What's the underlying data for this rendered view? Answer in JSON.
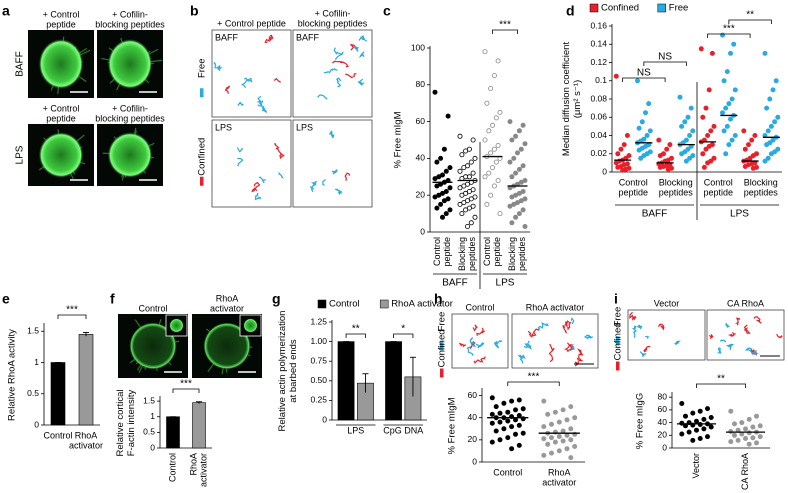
{
  "chart_data": [
    {
      "type": "micrograph",
      "panel_label": "a",
      "rows": [
        {
          "label": "BAFF",
          "column_labels": [
            [
              "+ Control",
              "peptide"
            ],
            [
              "+ Cofilin-",
              "blocking peptides"
            ]
          ]
        },
        {
          "label": "LPS",
          "column_labels": [
            [
              "+ Control",
              "peptide"
            ],
            [
              "+ Cofilin-",
              "blocking peptides"
            ]
          ]
        }
      ]
    },
    {
      "type": "tracks",
      "panel_label": "b",
      "rows": [
        {
          "column_labels": [
            [
              "+ Control peptide"
            ],
            [
              "+ Cofilin-",
              "blocking peptides"
            ]
          ],
          "insets": [
            "BAFF",
            "BAFF"
          ]
        },
        {
          "insets": [
            "LPS",
            "LPS"
          ]
        }
      ],
      "side_labels": [
        "Free",
        "Confined"
      ],
      "side_colors": [
        "#29abe2",
        "#e8202a"
      ]
    },
    {
      "type": "strip",
      "panel_label": "c",
      "ylabel": "% Free mIgM",
      "ylim": [
        0,
        100
      ],
      "yticks": [
        0,
        20,
        40,
        60,
        80,
        100
      ],
      "categories": [
        [
          "Control",
          "peptide"
        ],
        [
          "Blocking",
          "peptides"
        ],
        [
          "Control",
          "peptide"
        ],
        [
          "Blocking",
          "peptides"
        ]
      ],
      "groups": [
        "BAFF",
        "LPS"
      ],
      "series": [
        {
          "color": "#000000",
          "colors": [
            "#000000",
            "#000000",
            "#888888",
            "#888888"
          ],
          "filled": [
            true,
            false,
            false,
            true
          ],
          "values": [
            [
              76,
              63,
              45,
              40,
              38,
              35,
              33,
              31,
              30,
              29,
              28,
              27,
              26,
              25,
              24,
              22,
              21,
              20,
              19,
              18,
              17,
              15,
              13,
              12,
              10,
              8
            ],
            [
              52,
              50,
              45,
              44,
              42,
              40,
              38,
              36,
              35,
              33,
              32,
              30,
              30,
              29,
              28,
              27,
              26,
              25,
              24,
              23,
              22,
              21,
              20,
              19,
              18,
              17,
              16,
              15,
              14,
              13,
              12,
              10,
              8,
              5,
              3
            ],
            [
              98,
              93,
              85,
              78,
              70,
              65,
              62,
              58,
              55,
              50,
              47,
              45,
              43,
              41,
              40,
              38,
              35,
              32,
              30,
              28,
              25,
              20,
              15,
              10
            ],
            [
              60,
              58,
              55,
              52,
              50,
              48,
              45,
              43,
              40,
              38,
              36,
              34,
              32,
              30,
              28,
              27,
              26,
              25,
              24,
              22,
              21,
              20,
              19,
              18,
              17,
              16,
              15,
              14,
              12,
              10,
              8,
              5,
              3
            ]
          ],
          "medians": [
            27,
            28,
            41,
            25
          ]
        }
      ],
      "annotations": [
        "***"
      ]
    },
    {
      "type": "strip",
      "panel_label": "d",
      "ylabel": [
        "Median diffusion coefficient",
        "(μm² s⁻¹)"
      ],
      "ylim": [
        0,
        0.16
      ],
      "yticks": [
        0,
        0.02,
        0.04,
        0.06,
        0.08,
        0.1,
        0.12,
        0.14,
        0.16
      ],
      "categories": [
        [
          "Control",
          "peptide"
        ],
        [
          "Blocking",
          "peptides"
        ],
        [
          "Control",
          "peptide"
        ],
        [
          "Blocking",
          "peptides"
        ]
      ],
      "groups": [
        "BAFF",
        "LPS"
      ],
      "series": [
        {
          "name": "Confined",
          "color": "#e8202a",
          "values": [
            [
              0.105,
              0.04,
              0.03,
              0.025,
              0.02,
              0.018,
              0.015,
              0.013,
              0.012,
              0.01,
              0.009,
              0.008,
              0.006,
              0.005,
              0.004,
              0.003,
              0.002
            ],
            [
              0.035,
              0.03,
              0.025,
              0.02,
              0.018,
              0.015,
              0.013,
              0.012,
              0.01,
              0.009,
              0.008,
              0.007,
              0.006,
              0.005,
              0.004,
              0.003
            ],
            [
              0.135,
              0.13,
              0.09,
              0.07,
              0.06,
              0.05,
              0.045,
              0.04,
              0.035,
              0.033,
              0.03,
              0.028,
              0.025,
              0.02,
              0.015,
              0.012,
              0.01,
              0.005
            ],
            [
              0.045,
              0.04,
              0.035,
              0.03,
              0.025,
              0.02,
              0.018,
              0.015,
              0.013,
              0.012,
              0.01,
              0.009,
              0.008,
              0.006,
              0.005,
              0.004
            ]
          ],
          "medians": [
            0.013,
            0.01,
            0.033,
            0.012
          ]
        },
        {
          "name": "Free",
          "color": "#29abe2",
          "values": [
            [
              0.1,
              0.075,
              0.065,
              0.055,
              0.048,
              0.045,
              0.04,
              0.036,
              0.034,
              0.032,
              0.03,
              0.028,
              0.026,
              0.024,
              0.022,
              0.02,
              0.018,
              0.015
            ],
            [
              0.082,
              0.07,
              0.06,
              0.055,
              0.05,
              0.045,
              0.04,
              0.035,
              0.032,
              0.03,
              0.028,
              0.025,
              0.022,
              0.02,
              0.018,
              0.015,
              0.012
            ],
            [
              0.15,
              0.14,
              0.13,
              0.11,
              0.1,
              0.09,
              0.08,
              0.075,
              0.07,
              0.065,
              0.062,
              0.058,
              0.05,
              0.045,
              0.04,
              0.035,
              0.03,
              0.02
            ],
            [
              0.13,
              0.1,
              0.09,
              0.08,
              0.07,
              0.06,
              0.055,
              0.05,
              0.045,
              0.04,
              0.038,
              0.035,
              0.032,
              0.03,
              0.025,
              0.022,
              0.02,
              0.015,
              0.012
            ]
          ],
          "medians": [
            0.032,
            0.03,
            0.062,
            0.038
          ]
        }
      ],
      "annotations": [
        "NS",
        "NS",
        "***",
        "**"
      ]
    },
    {
      "type": "bar",
      "panel_label": "e",
      "ylabel": "Relative RhoA activity",
      "ylim": [
        0,
        1.6
      ],
      "yticks": [
        0,
        0.5,
        1,
        1.5
      ],
      "categories": [
        [
          "Control"
        ],
        [
          "RhoA",
          "activator"
        ]
      ],
      "values": [
        1,
        1.45
      ],
      "errors": [
        0,
        0.03
      ],
      "colors": [
        "#000000",
        "#999999"
      ],
      "annotations": [
        "***"
      ]
    },
    {
      "type": "micrograph",
      "panel_label": "f",
      "rows": [
        {
          "column_labels": [
            [
              "Control"
            ],
            [
              "RhoA",
              "activator"
            ]
          ]
        }
      ]
    },
    {
      "type": "bar",
      "ylabel": [
        "Relative cortical",
        "F-actin intensity"
      ],
      "ylim": [
        0,
        1.6
      ],
      "yticks": [
        0,
        0.5,
        1,
        1.5
      ],
      "categories": [
        [
          "Control"
        ],
        [
          "RhoA",
          "activator"
        ]
      ],
      "values": [
        1,
        1.45
      ],
      "errors": [
        0,
        0.03
      ],
      "colors": [
        "#000000",
        "#999999"
      ],
      "annotations": [
        "***"
      ]
    },
    {
      "type": "bar",
      "panel_label": "g",
      "ylabel": [
        "Relative actin polymerization",
        "at barbed ends"
      ],
      "ylim": [
        0,
        1.25
      ],
      "yticks": [
        0,
        0.25,
        {
          "value": 0.5,
          "label": "0.50"
        },
        0.75,
        {
          "value": 1,
          "label": "1.00"
        },
        1.25
      ],
      "categories": [
        [
          "LPS"
        ],
        [
          "CpG DNA"
        ]
      ],
      "series": [
        {
          "name": "Control",
          "color": "#000000",
          "values": [
            1,
            1
          ],
          "errors": [
            0,
            0
          ]
        },
        {
          "name": "RhoA activator",
          "color": "#999999",
          "values": [
            0.47,
            0.55
          ],
          "errors": [
            0.12,
            0.25
          ]
        }
      ],
      "annotations": [
        "**",
        "*"
      ]
    },
    {
      "type": "tracks",
      "panel_label": "h",
      "rows": [
        {
          "column_labels": [
            [
              "Control"
            ],
            [
              "RhoA activator"
            ]
          ]
        }
      ],
      "side_labels": [
        "Free",
        "Confined"
      ],
      "side_colors": [
        "#29abe2",
        "#e8202a"
      ]
    },
    {
      "type": "strip",
      "ylabel": "% Free mIgM",
      "ylim": [
        0,
        65
      ],
      "yticks": [
        0,
        20,
        40,
        60
      ],
      "categories": [
        [
          "Control"
        ],
        [
          "RhoA",
          "activator"
        ]
      ],
      "series": [
        {
          "color": "#000000",
          "colors": [
            "#000000",
            "#999999"
          ],
          "filled": [
            true,
            true
          ],
          "values": [
            [
              58,
              56,
              55,
              53,
              50,
              48,
              47,
              45,
              44,
              43,
              42,
              41,
              40,
              40,
              39,
              38,
              37,
              36,
              35,
              33,
              32,
              30,
              28,
              26,
              25,
              22,
              20,
              18,
              15,
              12
            ],
            [
              55,
              50,
              47,
              45,
              43,
              40,
              38,
              36,
              34,
              32,
              30,
              28,
              27,
              26,
              25,
              24,
              23,
              22,
              21,
              20,
              19,
              18,
              16,
              14,
              12,
              10,
              8,
              6,
              4
            ]
          ],
          "medians": [
            40,
            26
          ]
        }
      ],
      "annotations": [
        "***"
      ]
    },
    {
      "type": "tracks",
      "panel_label": "i",
      "rows": [
        {
          "column_labels": [
            [
              "Vector"
            ],
            [
              "CA RhoA"
            ]
          ]
        }
      ],
      "side_labels": [
        "Free",
        "Confined"
      ],
      "side_colors": [
        "#29abe2",
        "#e8202a"
      ]
    },
    {
      "type": "strip",
      "ylabel": "% Free mIgG",
      "ylim": [
        0,
        85
      ],
      "yticks": [
        0,
        20,
        40,
        60,
        80
      ],
      "categories": [
        [
          "Vector"
        ],
        [
          "CA RhoA"
        ]
      ],
      "series": [
        {
          "color": "#000000",
          "colors": [
            "#000000",
            "#999999"
          ],
          "filled": [
            true,
            true
          ],
          "values": [
            [
              70,
              62,
              58,
              55,
              50,
              48,
              45,
              42,
              40,
              39,
              38,
              37,
              36,
              35,
              33,
              30,
              28,
              25,
              22,
              18,
              15,
              12
            ],
            [
              58,
              50,
              45,
              40,
              38,
              35,
              33,
              30,
              28,
              26,
              25,
              24,
              22,
              20,
              18,
              16,
              15,
              12,
              10,
              8,
              6
            ]
          ],
          "medians": [
            38,
            25
          ]
        }
      ],
      "annotations": [
        "**"
      ]
    }
  ]
}
